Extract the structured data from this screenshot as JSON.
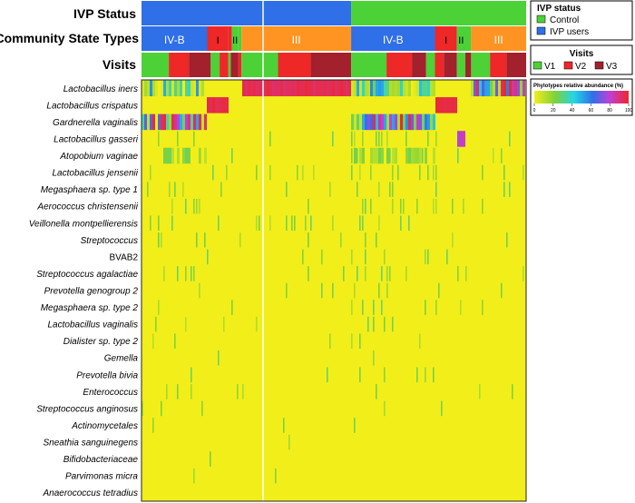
{
  "chart_data": {
    "type": "heatmap",
    "title": "",
    "xlabel": "",
    "ylabel": "",
    "header_labels": {
      "ivp": "IVP Status",
      "cst": "Community State Types",
      "visits": "Visits"
    },
    "ivp_status_bar": [
      {
        "value": "IVP users",
        "from": 0.0,
        "to": 0.545
      },
      {
        "value": "Control",
        "from": 0.545,
        "to": 1.0
      }
    ],
    "community_state_types": [
      {
        "label": "IV-B",
        "from": 0.0,
        "to": 0.171
      },
      {
        "label": "I",
        "from": 0.171,
        "to": 0.226
      },
      {
        "label": "",
        "from": 0.226,
        "to": 0.235
      },
      {
        "label": "II",
        "from": 0.235,
        "to": 0.252
      },
      {
        "label": "",
        "from": 0.252,
        "to": 0.26
      },
      {
        "label": "III",
        "from": 0.26,
        "to": 0.545
      },
      {
        "label": "IV-B",
        "from": 0.545,
        "to": 0.763
      },
      {
        "label": "I",
        "from": 0.763,
        "to": 0.82
      },
      {
        "label": "II",
        "from": 0.82,
        "to": 0.842
      },
      {
        "label": "",
        "from": 0.842,
        "to": 0.857
      },
      {
        "label": "III",
        "from": 0.857,
        "to": 1.0
      }
    ],
    "visits_bar": [
      {
        "visit": "V1",
        "from": 0.0,
        "to": 0.071
      },
      {
        "visit": "V2",
        "from": 0.071,
        "to": 0.123
      },
      {
        "visit": "V3",
        "from": 0.123,
        "to": 0.18
      },
      {
        "visit": "V1",
        "from": 0.18,
        "to": 0.203
      },
      {
        "visit": "V2",
        "from": 0.203,
        "to": 0.226
      },
      {
        "visit": "V1",
        "from": 0.226,
        "to": 0.232
      },
      {
        "visit": "V3",
        "from": 0.232,
        "to": 0.252
      },
      {
        "visit": "V2",
        "from": 0.252,
        "to": 0.26
      },
      {
        "visit": "V1",
        "from": 0.26,
        "to": 0.355
      },
      {
        "visit": "V2",
        "from": 0.355,
        "to": 0.44
      },
      {
        "visit": "V3",
        "from": 0.44,
        "to": 0.545
      },
      {
        "visit": "V1",
        "from": 0.545,
        "to": 0.637
      },
      {
        "visit": "V2",
        "from": 0.637,
        "to": 0.703
      },
      {
        "visit": "V3",
        "from": 0.703,
        "to": 0.74
      },
      {
        "visit": "V1",
        "from": 0.74,
        "to": 0.763
      },
      {
        "visit": "V2",
        "from": 0.763,
        "to": 0.786
      },
      {
        "visit": "V3",
        "from": 0.786,
        "to": 0.82
      },
      {
        "visit": "V1",
        "from": 0.82,
        "to": 0.842
      },
      {
        "visit": "V3",
        "from": 0.842,
        "to": 0.857
      },
      {
        "visit": "V1",
        "from": 0.857,
        "to": 0.906
      },
      {
        "visit": "V2",
        "from": 0.906,
        "to": 0.949
      },
      {
        "visit": "V3",
        "from": 0.949,
        "to": 1.0
      }
    ],
    "taxa": [
      {
        "name": "Lactobacillus iners",
        "italic": true
      },
      {
        "name": "Lactobacillus crispatus",
        "italic": true
      },
      {
        "name": "Gardnerella vaginalis",
        "italic": true
      },
      {
        "name": "Lactobacillus gasseri",
        "italic": true
      },
      {
        "name": "Atopobium vaginae",
        "italic": true
      },
      {
        "name": "Lactobacillus jensenii",
        "italic": true
      },
      {
        "name": "Megasphaera sp. type 1",
        "italic": true
      },
      {
        "name": "Aerococcus christensenii",
        "italic": true
      },
      {
        "name": "Veillonella montpellierensis",
        "italic": true
      },
      {
        "name": "Streptococcus",
        "italic": true
      },
      {
        "name": "BVAB2",
        "italic": false
      },
      {
        "name": "Streptococcus agalactiae",
        "italic": true
      },
      {
        "name": "Prevotella genogroup 2",
        "italic": true
      },
      {
        "name": "Megasphaera sp. type 2",
        "italic": true
      },
      {
        "name": "Lactobacillus vaginalis",
        "italic": true
      },
      {
        "name": "Dialister sp. type 2",
        "italic": true
      },
      {
        "name": "Gemella",
        "italic": true
      },
      {
        "name": "Prevotella bivia",
        "italic": true
      },
      {
        "name": "Enterococcus",
        "italic": true
      },
      {
        "name": "Streptococcus anginosus",
        "italic": true
      },
      {
        "name": "Actinomycetales",
        "italic": true
      },
      {
        "name": "Sneathia sanguinegens",
        "italic": true
      },
      {
        "name": "Bifidobacteriaceae",
        "italic": true
      },
      {
        "name": "Parvimonas micra",
        "italic": true
      },
      {
        "name": "Anaerococcus tetradius",
        "italic": true
      }
    ],
    "abundance_blocks": [
      {
        "taxon": 0,
        "from": 0.0,
        "to": 0.171,
        "pattern": "mixed-low",
        "level": 35
      },
      {
        "taxon": 0,
        "from": 0.26,
        "to": 0.545,
        "pattern": "solid",
        "level": 95
      },
      {
        "taxon": 0,
        "from": 0.545,
        "to": 0.763,
        "pattern": "mixed-low",
        "level": 30
      },
      {
        "taxon": 0,
        "from": 0.857,
        "to": 1.0,
        "pattern": "mixed-high",
        "level": 90
      },
      {
        "taxon": 1,
        "from": 0.171,
        "to": 0.226,
        "pattern": "solid",
        "level": 97
      },
      {
        "taxon": 1,
        "from": 0.763,
        "to": 0.82,
        "pattern": "solid",
        "level": 97
      },
      {
        "taxon": 2,
        "from": 0.0,
        "to": 0.171,
        "pattern": "mixed-high",
        "level": 60
      },
      {
        "taxon": 2,
        "from": 0.545,
        "to": 0.763,
        "pattern": "mixed-high",
        "level": 60
      },
      {
        "taxon": 3,
        "from": 0.82,
        "to": 0.842,
        "pattern": "solid",
        "level": 80
      },
      {
        "taxon": 4,
        "from": 0.0,
        "to": 0.171,
        "pattern": "sparse",
        "level": 20
      },
      {
        "taxon": 4,
        "from": 0.545,
        "to": 0.763,
        "pattern": "sparse",
        "level": 20
      }
    ],
    "ivp_legend": {
      "title": "IVP status",
      "items": [
        {
          "label": "Control",
          "color": "#4cd137"
        },
        {
          "label": "IVP users",
          "color": "#2f6fe8"
        }
      ]
    },
    "visits_legend": {
      "title": "Visits",
      "items": [
        {
          "label": "V1",
          "color": "#4cd137"
        },
        {
          "label": "V2",
          "color": "#ee2727"
        },
        {
          "label": "V3",
          "color": "#a3202d"
        }
      ]
    },
    "colorbar": {
      "title": "Phylotypes relative abundance (%)",
      "ticks": [
        0,
        20,
        40,
        60,
        80,
        100
      ]
    },
    "colors": {
      "ivp_users": "#2f6fe8",
      "control": "#4cd137",
      "cst_iv_b": "#2f6fe8",
      "cst_i": "#ee2727",
      "cst_ii": "#4cd137",
      "cst_iii": "#ff9422",
      "v1": "#4cd137",
      "v2": "#ee2727",
      "v3": "#a3202d",
      "heat_background": "#f2ee1a"
    }
  }
}
